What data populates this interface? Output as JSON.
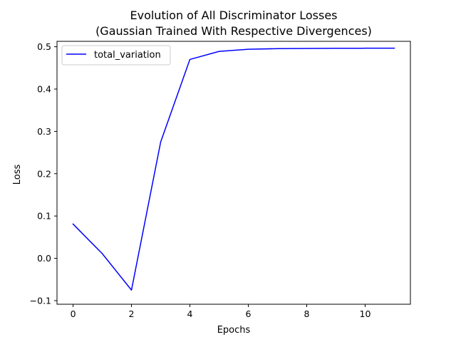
{
  "chart_data": {
    "type": "line",
    "title": [
      "Evolution of All Discriminator Losses",
      "(Gaussian Trained With Respective Divergences)"
    ],
    "xlabel": "Epochs",
    "ylabel": "Loss",
    "xlim": [
      -0.55,
      11.55
    ],
    "ylim": [
      -0.1085,
      0.5128
    ],
    "xticks": [
      0,
      2,
      4,
      6,
      8,
      10
    ],
    "xtick_labels": [
      "0",
      "2",
      "4",
      "6",
      "8",
      "10"
    ],
    "yticks": [
      -0.1,
      0.0,
      0.1,
      0.2,
      0.3,
      0.4,
      0.5
    ],
    "ytick_labels": [
      "−0.1",
      "0.0",
      "0.1",
      "0.2",
      "0.3",
      "0.4",
      "0.5"
    ],
    "grid": false,
    "legend_position": "upper-left",
    "series": [
      {
        "name": "total_variation",
        "color": "#0000ff",
        "x": [
          0,
          1,
          2,
          3,
          4,
          5,
          6,
          7,
          8,
          9,
          10,
          11
        ],
        "values": [
          0.081,
          0.011,
          -0.075,
          0.275,
          0.47,
          0.489,
          0.494,
          0.4955,
          0.496,
          0.4963,
          0.4965,
          0.4965
        ]
      }
    ]
  }
}
